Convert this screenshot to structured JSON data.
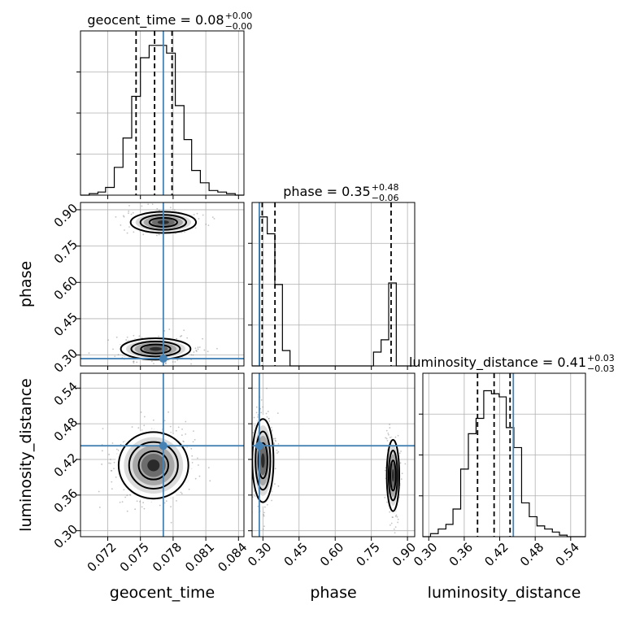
{
  "chart_data": {
    "type": "corner",
    "parameters": [
      "geocent_time",
      "phase",
      "luminosity_distance"
    ],
    "truth": {
      "geocent_time": 0.0771,
      "phase": 0.285,
      "luminosity_distance": 0.443
    },
    "titles": [
      {
        "param": "geocent_time",
        "label": "geocent_time = 0.08",
        "sup": "+0.00",
        "sub": "−0.00"
      },
      {
        "param": "phase",
        "label": "phase = 0.35",
        "sup": "+0.48",
        "sub": "−0.06"
      },
      {
        "param": "luminosity_distance",
        "label": "luminosity_distance = 0.41",
        "sup": "+0.03",
        "sub": "−0.03"
      }
    ],
    "axes": {
      "geocent_time": {
        "range": [
          0.0695,
          0.0845
        ],
        "ticks": [
          "0.072",
          "0.075",
          "0.078",
          "0.081",
          "0.084"
        ],
        "tickvals": [
          0.072,
          0.075,
          0.078,
          0.081,
          0.084
        ]
      },
      "phase": {
        "range": [
          0.255,
          0.93
        ],
        "ticks": [
          "0.30",
          "0.45",
          "0.60",
          "0.75",
          "0.90"
        ],
        "tickvals": [
          0.3,
          0.45,
          0.6,
          0.75,
          0.9
        ]
      },
      "luminosity_distance": {
        "range": [
          0.29,
          0.565
        ],
        "ticks": [
          "0.30",
          "0.36",
          "0.42",
          "0.48",
          "0.54"
        ],
        "tickvals": [
          0.3,
          0.36,
          0.42,
          0.48,
          0.54
        ]
      }
    },
    "histograms": {
      "geocent_time": {
        "bins": [
          0.0695,
          0.0703,
          0.0711,
          0.0718,
          0.0726,
          0.0734,
          0.0742,
          0.075,
          0.0758,
          0.0766,
          0.0774,
          0.0782,
          0.079,
          0.0797,
          0.0805,
          0.0813,
          0.0821,
          0.0829,
          0.0837,
          0.0845
        ],
        "counts": [
          0.0,
          0.01,
          0.02,
          0.05,
          0.18,
          0.37,
          0.64,
          0.89,
          0.97,
          0.97,
          0.92,
          0.58,
          0.36,
          0.16,
          0.08,
          0.03,
          0.02,
          0.01,
          0.0
        ],
        "quantiles": [
          0.0746,
          0.0763,
          0.0779
        ]
      },
      "phase": {
        "bins": [
          0.255,
          0.2865,
          0.318,
          0.3495,
          0.381,
          0.4125,
          0.444,
          0.4755,
          0.507,
          0.5385,
          0.57,
          0.6015,
          0.633,
          0.6645,
          0.696,
          0.7275,
          0.759,
          0.7905,
          0.822,
          0.8535,
          0.885,
          0.93
        ],
        "counts": [
          0.0,
          0.97,
          0.86,
          0.53,
          0.1,
          0.0,
          0.0,
          0.0,
          0.0,
          0.0,
          0.0,
          0.0,
          0.0,
          0.0,
          0.0,
          0.0,
          0.09,
          0.17,
          0.54,
          0.0,
          0.0
        ],
        "quantiles": [
          0.297,
          0.35,
          0.832
        ]
      },
      "luminosity_distance": {
        "bins": [
          0.29,
          0.303,
          0.316,
          0.329,
          0.341,
          0.354,
          0.367,
          0.38,
          0.393,
          0.406,
          0.419,
          0.431,
          0.444,
          0.457,
          0.47,
          0.483,
          0.496,
          0.509,
          0.521,
          0.534,
          0.547,
          0.565
        ],
        "counts": [
          0.0,
          0.02,
          0.05,
          0.08,
          0.18,
          0.44,
          0.67,
          0.77,
          0.95,
          0.93,
          0.91,
          0.71,
          0.58,
          0.22,
          0.13,
          0.07,
          0.05,
          0.03,
          0.01,
          0.0,
          0.0
        ],
        "quantiles": [
          0.3825,
          0.4105,
          0.4375
        ]
      }
    },
    "grid": true,
    "colors": {
      "truth": "#4682b4",
      "contour": "#000000",
      "hist": "#000000"
    }
  }
}
